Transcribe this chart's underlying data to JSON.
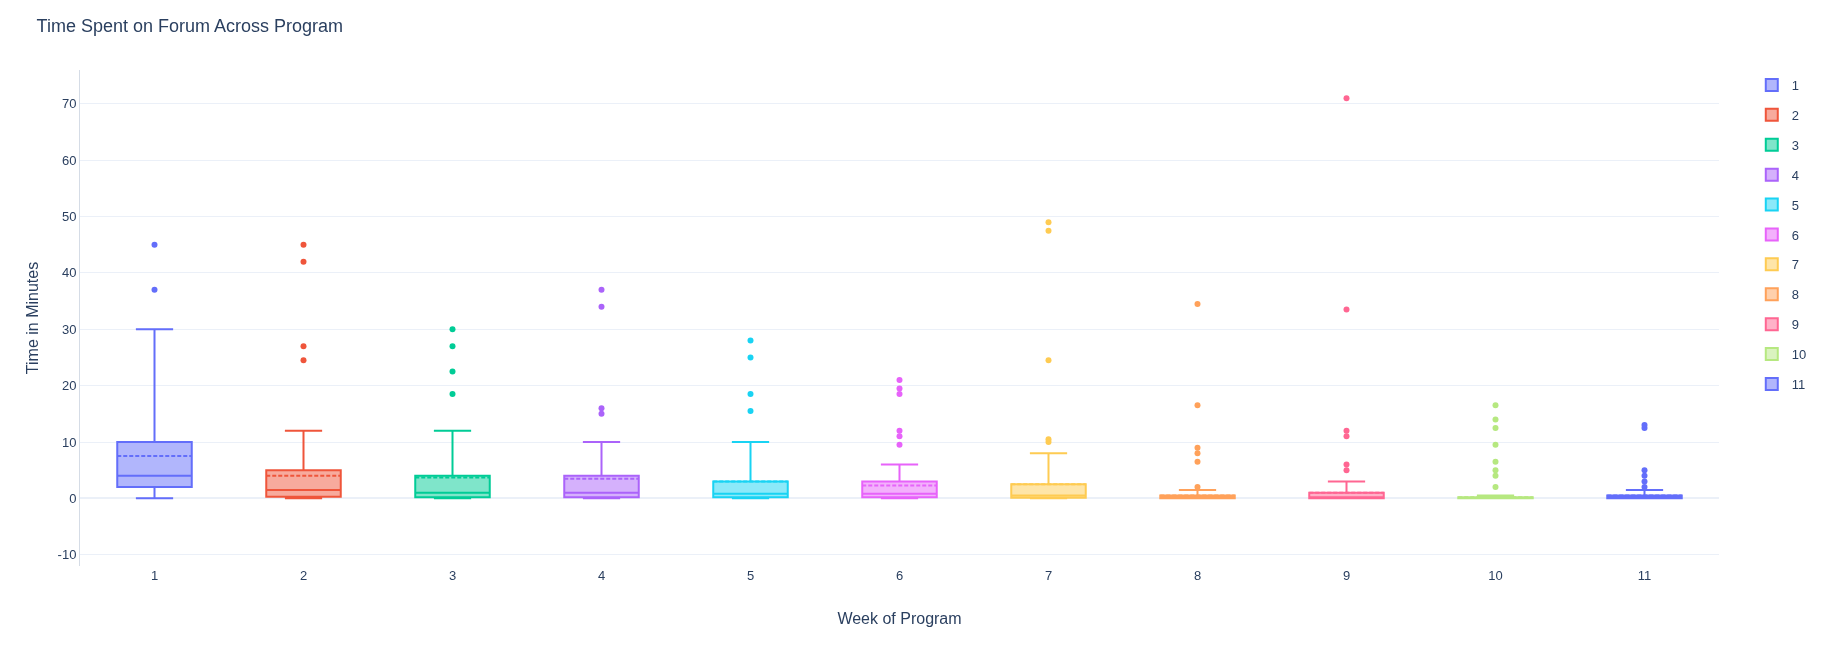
{
  "chart_data": {
    "type": "box",
    "title": "Time Spent on Forum Across Program",
    "xlabel": "Week of Program",
    "ylabel": "Time in Minutes",
    "categories": [
      "1",
      "2",
      "3",
      "4",
      "5",
      "6",
      "7",
      "8",
      "9",
      "10",
      "11"
    ],
    "ylim": [
      -12,
      76
    ],
    "yticks": [
      -10,
      0,
      10,
      20,
      30,
      40,
      50,
      60,
      70
    ],
    "grid": "y",
    "legend": "top right",
    "series": [
      {
        "name": "1",
        "color": "#636efa",
        "boxes": [
          {
            "low": 0,
            "q1": 2,
            "median": 4,
            "q3": 10,
            "high": 30,
            "mean": 7.5,
            "outliers": [
              37,
              45
            ]
          },
          null,
          null,
          null,
          null,
          null,
          null,
          null,
          null,
          null,
          null
        ]
      },
      {
        "name": "2",
        "color": "#ef553b",
        "boxes": [
          null,
          {
            "low": 0,
            "q1": 0.3,
            "median": 1.5,
            "q3": 5,
            "high": 12,
            "mean": 4,
            "outliers": [
              24.5,
              27,
              42,
              45
            ]
          },
          null,
          null,
          null,
          null,
          null,
          null,
          null,
          null,
          null
        ]
      },
      {
        "name": "3",
        "color": "#00cc96",
        "boxes": [
          null,
          null,
          {
            "low": 0,
            "q1": 0.2,
            "median": 1,
            "q3": 4,
            "high": 12,
            "mean": 3.7,
            "outliers": [
              18.5,
              22.5,
              27,
              30
            ]
          },
          null,
          null,
          null,
          null,
          null,
          null,
          null,
          null
        ]
      },
      {
        "name": "4",
        "color": "#ab63fa",
        "boxes": [
          null,
          null,
          null,
          {
            "low": 0,
            "q1": 0.2,
            "median": 1,
            "q3": 4,
            "high": 10,
            "mean": 3.5,
            "outliers": [
              15,
              16,
              34,
              37
            ]
          },
          null,
          null,
          null,
          null,
          null,
          null,
          null
        ]
      },
      {
        "name": "5",
        "color": "#19d3f3",
        "boxes": [
          null,
          null,
          null,
          null,
          {
            "low": 0,
            "q1": 0.2,
            "median": 0.8,
            "q3": 3,
            "high": 10,
            "mean": 3,
            "outliers": [
              15.5,
              18.5,
              25,
              28
            ]
          },
          null,
          null,
          null,
          null,
          null,
          null
        ]
      },
      {
        "name": "6",
        "color": "#e763fa",
        "boxes": [
          null,
          null,
          null,
          null,
          null,
          {
            "low": 0,
            "q1": 0.2,
            "median": 0.8,
            "q3": 3,
            "high": 6,
            "mean": 2.3,
            "outliers": [
              9.5,
              11,
              12,
              18.5,
              19.5,
              21
            ]
          },
          null,
          null,
          null,
          null,
          null
        ]
      },
      {
        "name": "7",
        "color": "#fecb52",
        "boxes": [
          null,
          null,
          null,
          null,
          null,
          null,
          {
            "low": 0,
            "q1": 0.1,
            "median": 0.5,
            "q3": 2.5,
            "high": 8,
            "mean": 2.5,
            "outliers": [
              10,
              10.5,
              24.5,
              47.5,
              49
            ]
          },
          null,
          null,
          null,
          null
        ]
      },
      {
        "name": "8",
        "color": "#ffa15a",
        "boxes": [
          null,
          null,
          null,
          null,
          null,
          null,
          null,
          {
            "low": 0,
            "q1": 0,
            "median": 0.2,
            "q3": 0.5,
            "high": 1.5,
            "mean": 0.5,
            "outliers": [
              2,
              6.5,
              8,
              9,
              16.5,
              34.5
            ]
          },
          null,
          null,
          null
        ]
      },
      {
        "name": "9",
        "color": "#ff6692",
        "boxes": [
          null,
          null,
          null,
          null,
          null,
          null,
          null,
          null,
          {
            "low": 0,
            "q1": 0,
            "median": 0.2,
            "q3": 1,
            "high": 3,
            "mean": 1,
            "outliers": [
              5,
              6,
              11,
              12,
              33.5,
              71
            ]
          },
          null,
          null
        ]
      },
      {
        "name": "10",
        "color": "#b6e880",
        "boxes": [
          null,
          null,
          null,
          null,
          null,
          null,
          null,
          null,
          null,
          {
            "low": 0,
            "q1": 0,
            "median": 0,
            "q3": 0.2,
            "high": 0.5,
            "mean": 0.2,
            "outliers": [
              2,
              4,
              5,
              6.5,
              9.5,
              12.5,
              14,
              16.5
            ]
          },
          null
        ]
      },
      {
        "name": "11",
        "color": "#636efa",
        "boxes": [
          null,
          null,
          null,
          null,
          null,
          null,
          null,
          null,
          null,
          null,
          {
            "low": 0,
            "q1": 0,
            "median": 0.2,
            "q3": 0.5,
            "high": 1.5,
            "mean": 0.5,
            "outliers": [
              2,
              3,
              4,
              5,
              12.5,
              13
            ]
          }
        ]
      }
    ]
  }
}
